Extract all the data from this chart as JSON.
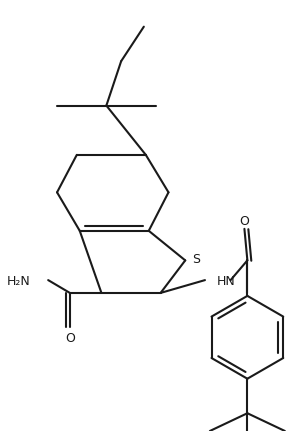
{
  "background_color": "#ffffff",
  "line_color": "#1a1a1a",
  "line_width": 1.5,
  "figsize": [
    3.03,
    4.35
  ],
  "dpi": 100,
  "S_label": "S",
  "HN_label": "HN",
  "O_label": "O",
  "NH2_label": "H₂N"
}
